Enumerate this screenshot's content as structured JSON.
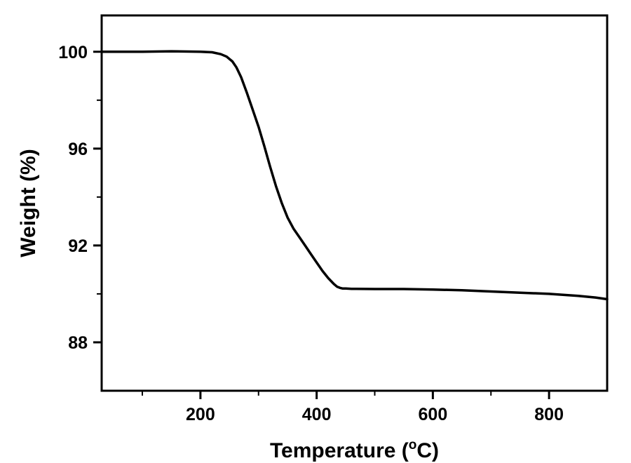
{
  "chart_data": {
    "type": "line",
    "title": "",
    "xlabel": "Temperature (°C)",
    "xlabel_parts": {
      "before": "Temperature (",
      "superscript": "o",
      "after": "C)"
    },
    "ylabel": "Weight (%)",
    "xlim": [
      30,
      900
    ],
    "ylim": [
      86,
      101.5
    ],
    "xticks": [
      200,
      400,
      600,
      800
    ],
    "xticks_minor": [
      100,
      300,
      500,
      700
    ],
    "yticks": [
      88,
      92,
      96,
      100
    ],
    "yticks_minor": [
      90,
      94,
      98
    ],
    "grid": false,
    "legend": "none",
    "line_color": "#000000",
    "series": [
      {
        "x": [
          30,
          100,
          150,
          200,
          220,
          235,
          245,
          255,
          262,
          270,
          280,
          290,
          300,
          310,
          320,
          330,
          340,
          350,
          360,
          370,
          380,
          390,
          400,
          410,
          420,
          430,
          435,
          440,
          445,
          450,
          460,
          500,
          550,
          600,
          650,
          700,
          750,
          800,
          850,
          880,
          900
        ],
        "y": [
          100.0,
          100.0,
          100.02,
          100.0,
          99.98,
          99.9,
          99.8,
          99.6,
          99.35,
          98.95,
          98.3,
          97.6,
          96.9,
          96.1,
          95.25,
          94.45,
          93.75,
          93.15,
          92.7,
          92.35,
          92.0,
          91.65,
          91.3,
          90.95,
          90.65,
          90.4,
          90.3,
          90.25,
          90.22,
          90.22,
          90.21,
          90.2,
          90.2,
          90.18,
          90.15,
          90.1,
          90.05,
          90.0,
          89.92,
          89.85,
          89.78
        ]
      }
    ]
  }
}
